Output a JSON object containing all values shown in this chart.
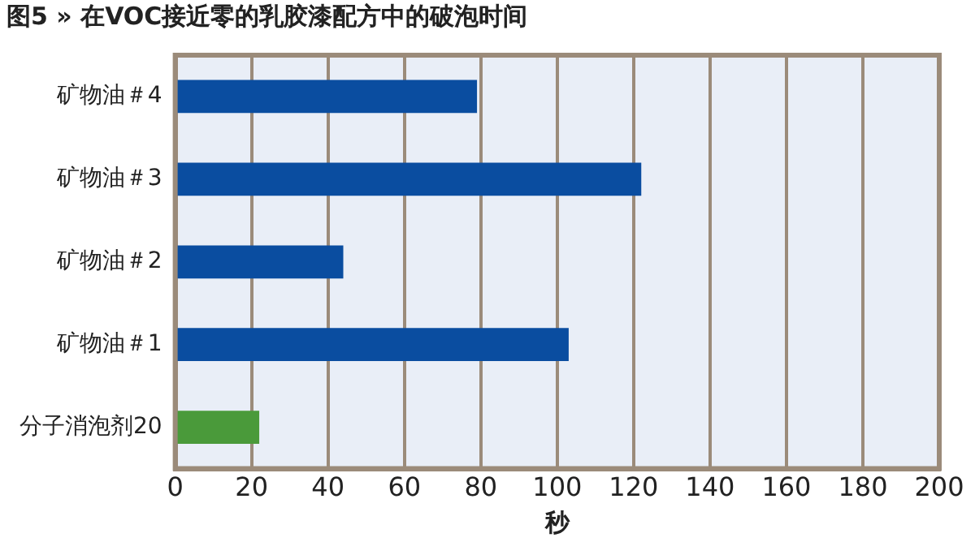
{
  "chart_data": {
    "type": "bar",
    "orientation": "horizontal",
    "title": "图5 » 在VOC接近零的乳胶漆配方中的破泡时间",
    "xlabel": "秒",
    "categories": [
      "矿物油＃4",
      "矿物油＃3",
      "矿物油＃2",
      "矿物油＃1",
      "分子消泡剂20"
    ],
    "values": [
      79,
      122,
      44,
      103,
      22
    ],
    "colors": [
      "#0a4da0",
      "#0a4da0",
      "#0a4da0",
      "#0a4da0",
      "#4a9a3a"
    ],
    "xlim": [
      0,
      200
    ],
    "xticks": [
      0,
      20,
      40,
      60,
      80,
      100,
      120,
      140,
      160,
      180,
      200
    ],
    "grid": "x",
    "legend": false
  }
}
